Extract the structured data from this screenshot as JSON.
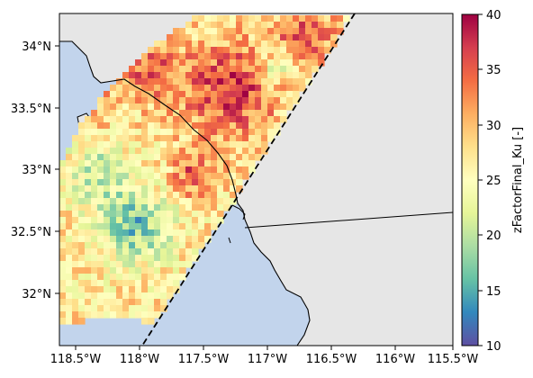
{
  "map": {
    "x_ticks": [
      "118.5°W",
      "118°W",
      "117.5°W",
      "117°W",
      "116.5°W",
      "116°W",
      "115.5°W"
    ],
    "y_ticks": [
      "34°N",
      "33.5°N",
      "33°N",
      "32.5°N",
      "32°N"
    ],
    "colors": {
      "ocean": "#c2d4ec",
      "land": "#e6e6e6",
      "coast": "#000000",
      "swath_edge": "#000000"
    }
  },
  "colorbar": {
    "label": "zFactorFinal_Ku [-]",
    "ticks": [
      "10",
      "15",
      "20",
      "25",
      "30",
      "35",
      "40"
    ],
    "range": [
      10,
      40
    ],
    "colormap": "Spectral_r"
  }
}
